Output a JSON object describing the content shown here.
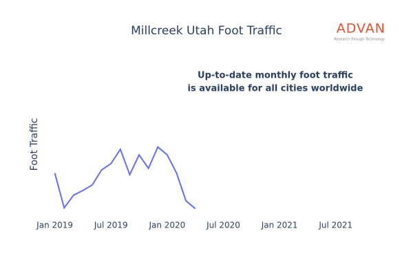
{
  "chart_data": {
    "type": "line",
    "title": "Millcreek Utah Foot Traffic",
    "y_label": "Foot Traffic",
    "annotation": [
      "Up-to-date monthly foot traffic",
      "is available for all cities worldwide"
    ],
    "logo": {
      "name": "ADVAN",
      "tagline": "Research through Technology"
    },
    "x": [
      "2019-01",
      "2019-02",
      "2019-03",
      "2019-04",
      "2019-05",
      "2019-06",
      "2019-07",
      "2019-08",
      "2019-09",
      "2019-10",
      "2019-11",
      "2019-12",
      "2020-01",
      "2020-02",
      "2020-03",
      "2020-04"
    ],
    "series": [
      {
        "name": "Foot Traffic",
        "color": "#636efa",
        "values": [
          55,
          11,
          27,
          33,
          40,
          59,
          67,
          85,
          53,
          78,
          61,
          88,
          78,
          55,
          20,
          10
        ]
      }
    ],
    "xlim": [
      "2018-12",
      "2021-09"
    ],
    "xticks": [
      {
        "value": "2019-01",
        "label": "Jan 2019"
      },
      {
        "value": "2019-07",
        "label": "Jul 2019"
      },
      {
        "value": "2020-01",
        "label": "Jan 2020"
      },
      {
        "value": "2020-07",
        "label": "Jul 2020"
      },
      {
        "value": "2021-01",
        "label": "Jan 2021"
      },
      {
        "value": "2021-07",
        "label": "Jul 2021"
      }
    ],
    "ylim": [
      0,
      100
    ]
  }
}
